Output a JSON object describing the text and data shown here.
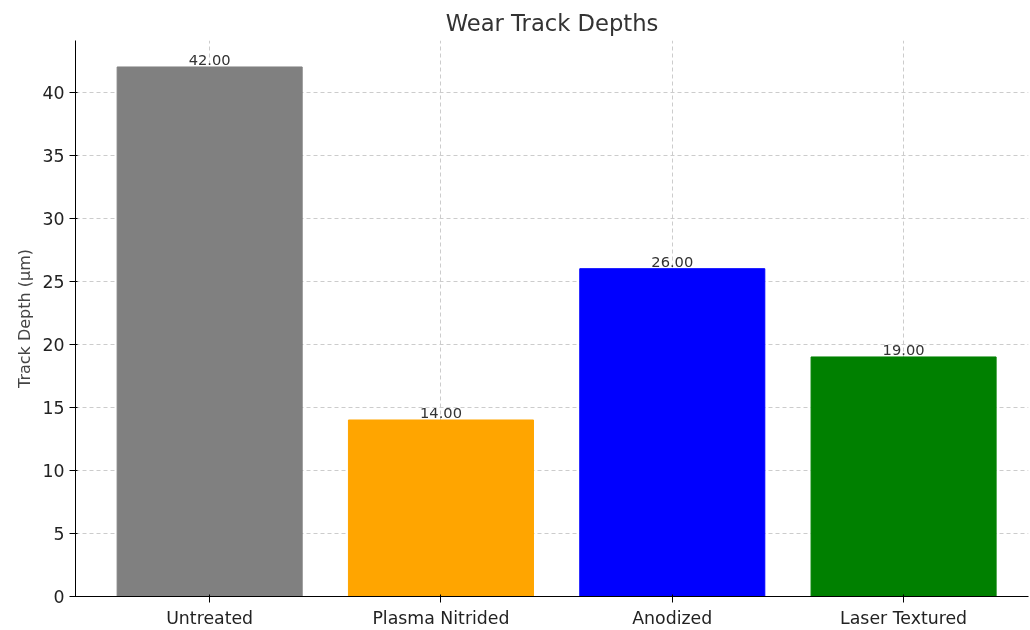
{
  "chart_data": {
    "type": "bar",
    "title": "Wear Track Depths",
    "ylabel": "Track Depth (μm)",
    "categories": [
      "Untreated",
      "Plasma Nitrided",
      "Anodized",
      "Laser Textured"
    ],
    "values": [
      42,
      14,
      26,
      19
    ],
    "colors": [
      "#808080",
      "#ffa500",
      "#0000ff",
      "#008000"
    ],
    "value_labels": [
      "42.00",
      "14.00",
      "26.00",
      "19.00"
    ],
    "ylim": [
      0,
      44.1
    ],
    "yticks": [
      0,
      5,
      10,
      15,
      20,
      25,
      30,
      35,
      40
    ],
    "grid": true
  }
}
